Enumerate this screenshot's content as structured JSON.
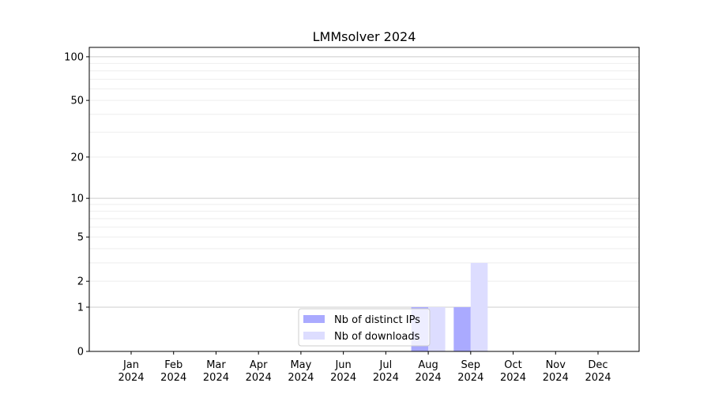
{
  "chart_data": {
    "type": "bar",
    "title": "LMMsolver 2024",
    "xlabel": "",
    "ylabel": "",
    "yscale": "log(1+y)",
    "ylim": [
      0,
      116
    ],
    "grid": true,
    "legend_placement": "bottom-center",
    "categories": [
      "Jan\n2024",
      "Feb\n2024",
      "Mar\n2024",
      "Apr\n2024",
      "May\n2024",
      "Jun\n2024",
      "Jul\n2024",
      "Aug\n2024",
      "Sep\n2024",
      "Oct\n2024",
      "Nov\n2024",
      "Dec\n2024"
    ],
    "category_lines": [
      [
        "Jan",
        "2024"
      ],
      [
        "Feb",
        "2024"
      ],
      [
        "Mar",
        "2024"
      ],
      [
        "Apr",
        "2024"
      ],
      [
        "May",
        "2024"
      ],
      [
        "Jun",
        "2024"
      ],
      [
        "Jul",
        "2024"
      ],
      [
        "Aug",
        "2024"
      ],
      [
        "Sep",
        "2024"
      ],
      [
        "Oct",
        "2024"
      ],
      [
        "Nov",
        "2024"
      ],
      [
        "Dec",
        "2024"
      ]
    ],
    "yticks": [
      0,
      1,
      2,
      5,
      10,
      20,
      50,
      100
    ],
    "ytick_labels": [
      "0",
      "1",
      "2",
      "5",
      "10",
      "20",
      "50",
      "100"
    ],
    "major_grid": [
      1,
      10,
      100
    ],
    "minor_grid": [
      2,
      3,
      4,
      5,
      6,
      7,
      8,
      9,
      20,
      30,
      40,
      50,
      60,
      70,
      80,
      90
    ],
    "series": [
      {
        "name": "Nb of distinct IPs",
        "color": "#aaaaff",
        "values": [
          0,
          0,
          0,
          0,
          0,
          0,
          0,
          1,
          1,
          0,
          0,
          0
        ]
      },
      {
        "name": "Nb of downloads",
        "color": "#ddddff",
        "values": [
          0,
          0,
          0,
          0,
          0,
          0,
          0,
          1,
          3,
          0,
          0,
          0
        ]
      }
    ]
  }
}
